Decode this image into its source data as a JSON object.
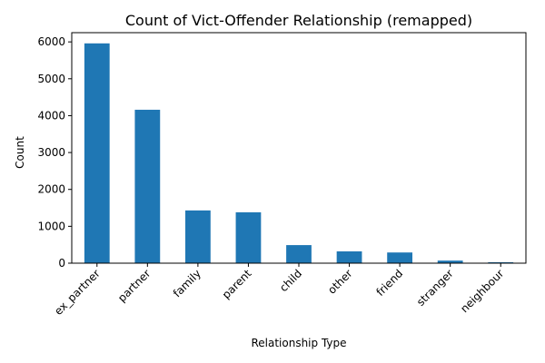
{
  "chart_data": {
    "type": "bar",
    "title": "Count of Vict-Offender Relationship (remapped)",
    "xlabel": "Relationship Type",
    "ylabel": "Count",
    "categories": [
      "ex_partner",
      "partner",
      "family",
      "parent",
      "child",
      "other",
      "friend",
      "stranger",
      "neighbour"
    ],
    "values": [
      5960,
      4160,
      1430,
      1380,
      490,
      320,
      290,
      70,
      25
    ],
    "ylim": [
      0,
      6250
    ],
    "yticks": [
      0,
      1000,
      2000,
      3000,
      4000,
      5000,
      6000
    ],
    "grid": false,
    "legend": "none",
    "bar_color": "#1f77b4"
  }
}
